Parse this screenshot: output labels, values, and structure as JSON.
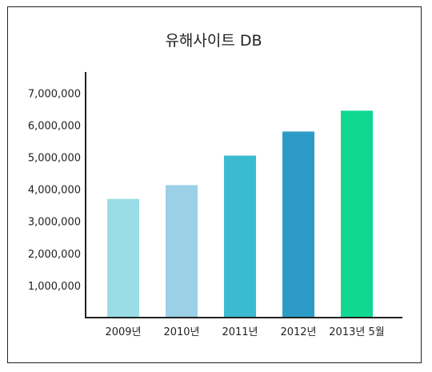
{
  "chart_data": {
    "type": "bar",
    "title": "유해사이트 DB",
    "xlabel": "",
    "ylabel": "",
    "categories": [
      "2009년",
      "2010년",
      "2011년",
      "2012년",
      "2013년 5월"
    ],
    "values": [
      3700000,
      4130000,
      5050000,
      5800000,
      6450000
    ],
    "colors": [
      "#9bdde7",
      "#9bd0e7",
      "#3bbbd2",
      "#2c9bc8",
      "#10d890"
    ],
    "ylim": [
      0,
      7000000
    ],
    "yticks": [
      "1,000,000",
      "2,000,000",
      "3,000,000",
      "4,000,000",
      "5,000,000",
      "6,000,000",
      "7,000,000"
    ],
    "ytick_values": [
      1000000,
      2000000,
      3000000,
      4000000,
      5000000,
      6000000,
      7000000
    ],
    "grid": false,
    "legend": "none"
  }
}
